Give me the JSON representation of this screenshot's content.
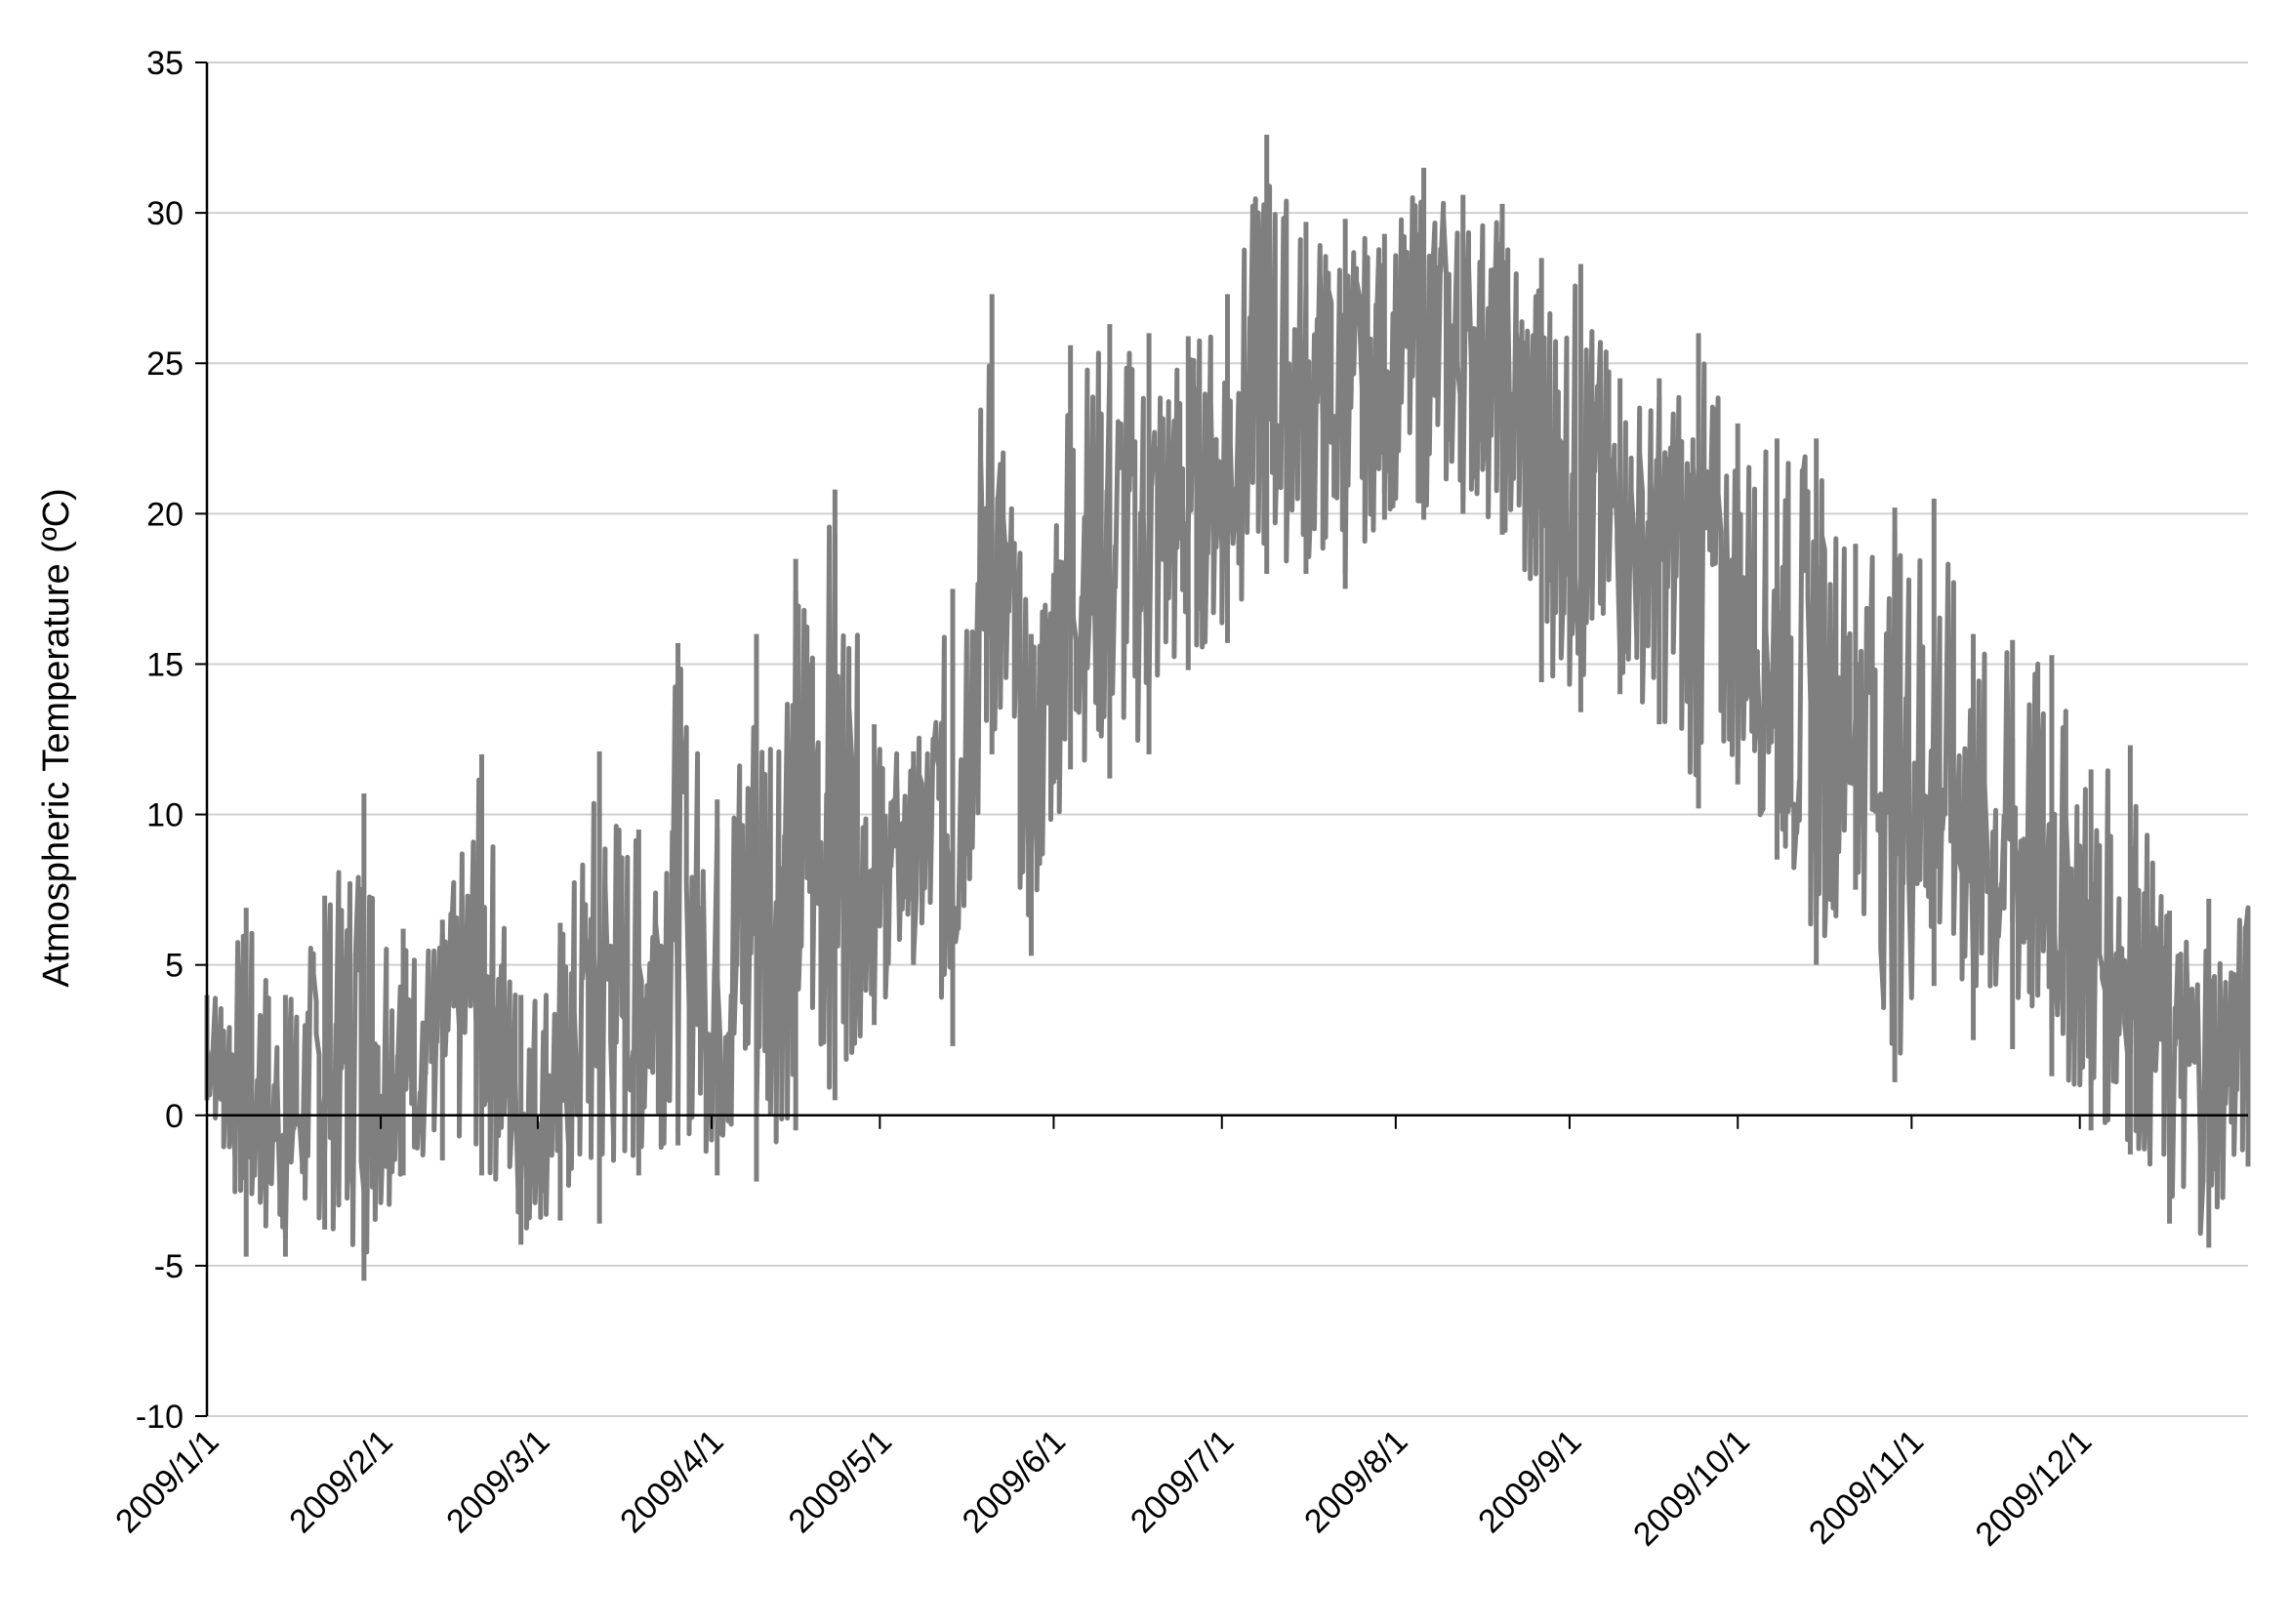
{
  "chart_data": {
    "type": "line",
    "title": "",
    "xlabel": "",
    "ylabel": "Atmospheric Temperature (ºC)",
    "ylim": [
      -10,
      35
    ],
    "yticks": [
      -10,
      -5,
      0,
      5,
      10,
      15,
      20,
      25,
      30,
      35
    ],
    "xlim": [
      "2009-01-01",
      "2009-12-31"
    ],
    "xtick_labels": [
      "2009/1/1",
      "2009/2/1",
      "2009/3/1",
      "2009/4/1",
      "2009/5/1",
      "2009/6/1",
      "2009/7/1",
      "2009/8/1",
      "2009/9/1",
      "2009/10/1",
      "2009/11/1",
      "2009/12/1"
    ],
    "xtick_dates": [
      "2009-01-01",
      "2009-02-01",
      "2009-03-01",
      "2009-04-01",
      "2009-05-01",
      "2009-06-01",
      "2009-07-01",
      "2009-08-01",
      "2009-09-01",
      "2009-10-01",
      "2009-11-01",
      "2009-12-01"
    ],
    "grid": "horizontal",
    "legend": "none",
    "line_color": "#7f7f7f",
    "series": [
      {
        "name": "",
        "resolution": "daily min/max range (hourly data envelope)",
        "x": [
          "2009-01-01",
          "2009-01-08",
          "2009-01-15",
          "2009-01-22",
          "2009-01-29",
          "2009-02-05",
          "2009-02-12",
          "2009-02-19",
          "2009-02-26",
          "2009-03-05",
          "2009-03-12",
          "2009-03-19",
          "2009-03-26",
          "2009-04-02",
          "2009-04-09",
          "2009-04-16",
          "2009-04-23",
          "2009-04-30",
          "2009-05-07",
          "2009-05-14",
          "2009-05-21",
          "2009-05-28",
          "2009-06-04",
          "2009-06-11",
          "2009-06-18",
          "2009-06-25",
          "2009-07-02",
          "2009-07-09",
          "2009-07-16",
          "2009-07-23",
          "2009-07-30",
          "2009-08-06",
          "2009-08-13",
          "2009-08-20",
          "2009-08-27",
          "2009-09-03",
          "2009-09-10",
          "2009-09-17",
          "2009-09-24",
          "2009-10-01",
          "2009-10-08",
          "2009-10-15",
          "2009-10-22",
          "2009-10-29",
          "2009-11-05",
          "2009-11-12",
          "2009-11-19",
          "2009-11-26",
          "2009-12-03",
          "2009-12-10",
          "2009-12-17",
          "2009-12-24",
          "2009-12-31"
        ],
        "y_max": [
          4,
          6.9,
          4,
          7.3,
          10.7,
          6.2,
          6.5,
          12,
          4,
          6.4,
          12.1,
          9.5,
          15.7,
          10.5,
          16,
          18.5,
          20.8,
          13,
          12.1,
          17.5,
          27.3,
          16,
          25.6,
          26.3,
          26,
          25.9,
          27.3,
          32.6,
          29.7,
          29.8,
          29.3,
          31.5,
          30.6,
          30.3,
          28.5,
          28.3,
          24.5,
          24.5,
          26,
          23,
          22.5,
          22.5,
          19,
          20.2,
          20.5,
          16,
          15.8,
          15.3,
          11.5,
          12.3,
          6.8,
          7.2,
          6.9
        ],
        "y_min": [
          0.5,
          -4.7,
          -4.7,
          -3.8,
          -5.5,
          -2,
          -1.5,
          -2,
          -4.3,
          -3.5,
          -3.6,
          -2,
          -1,
          -2,
          -2.2,
          -0.5,
          0.5,
          3,
          5,
          2.3,
          12,
          5.3,
          11.5,
          11.2,
          12,
          14.8,
          15.7,
          18,
          18,
          17.5,
          19.8,
          19.8,
          20,
          19.3,
          14.4,
          13.4,
          14,
          13,
          10.2,
          11,
          8.5,
          5,
          7.5,
          1.1,
          4.3,
          2.5,
          2.2,
          1.3,
          -0.5,
          -1.3,
          -3.6,
          -4.4,
          -1.7
        ]
      }
    ]
  }
}
